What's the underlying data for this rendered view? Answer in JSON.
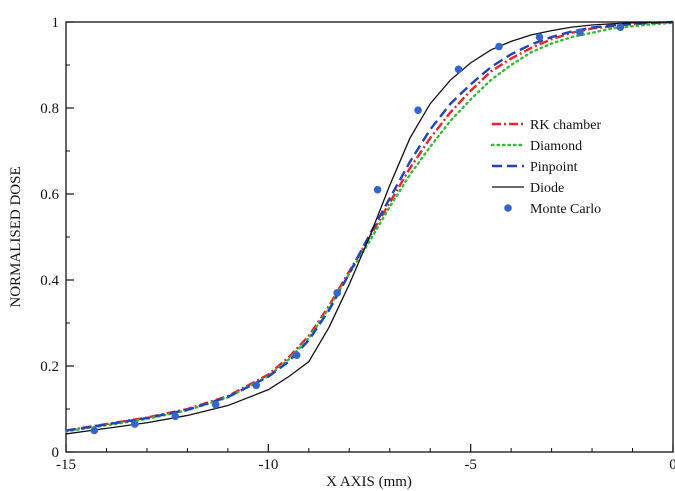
{
  "chart_data": {
    "type": "line",
    "title": "",
    "xlabel": "X AXIS (mm)",
    "ylabel": "NORMALISED DOSE",
    "xlim": [
      -15,
      0
    ],
    "ylim": [
      0,
      1
    ],
    "xticks": [
      -15,
      -10,
      -5,
      0
    ],
    "yticks": [
      0,
      0.2,
      0.4,
      0.6,
      0.8,
      1
    ],
    "xtick_labels": [
      "-15",
      "-10",
      "-5",
      "0"
    ],
    "ytick_labels": [
      "0",
      "0.2",
      "0.4",
      "0.6",
      "0.8",
      "1"
    ],
    "grid": false,
    "legend_position": "right",
    "series": [
      {
        "name": "RK chamber",
        "style": "dash-dot",
        "color": "#e8232a",
        "x": [
          -15,
          -14,
          -13,
          -12,
          -11,
          -10,
          -9.5,
          -9,
          -8.5,
          -8,
          -7.5,
          -7,
          -6.5,
          -6,
          -5.5,
          -5,
          -4.5,
          -4,
          -3.5,
          -3,
          -2.5,
          -2,
          -1.5,
          -1,
          -0.5,
          0
        ],
        "y": [
          0.05,
          0.065,
          0.08,
          0.1,
          0.13,
          0.18,
          0.22,
          0.27,
          0.34,
          0.42,
          0.5,
          0.58,
          0.66,
          0.73,
          0.79,
          0.84,
          0.885,
          0.915,
          0.94,
          0.96,
          0.975,
          0.985,
          0.99,
          0.995,
          0.998,
          1.0
        ]
      },
      {
        "name": "Diamond",
        "style": "dotted",
        "color": "#33bb33",
        "x": [
          -15,
          -14,
          -13,
          -12,
          -11,
          -10,
          -9.5,
          -9,
          -8.5,
          -8,
          -7.5,
          -7,
          -6.5,
          -6,
          -5.5,
          -5,
          -4.5,
          -4,
          -3.5,
          -3,
          -2.5,
          -2,
          -1.5,
          -1,
          -0.5,
          0
        ],
        "y": [
          0.048,
          0.062,
          0.077,
          0.097,
          0.127,
          0.176,
          0.215,
          0.265,
          0.335,
          0.415,
          0.49,
          0.57,
          0.645,
          0.71,
          0.77,
          0.82,
          0.865,
          0.9,
          0.93,
          0.95,
          0.965,
          0.975,
          0.985,
          0.99,
          0.995,
          0.998
        ]
      },
      {
        "name": "Pinpoint",
        "style": "dashed",
        "color": "#2244bb",
        "x": [
          -15,
          -14,
          -13,
          -12,
          -11,
          -10,
          -9.5,
          -9,
          -8.5,
          -8,
          -7.5,
          -7,
          -6.5,
          -6,
          -5.5,
          -5,
          -4.5,
          -4,
          -3.5,
          -3,
          -2.5,
          -2,
          -1.5,
          -1,
          -0.5,
          0
        ],
        "y": [
          0.05,
          0.064,
          0.079,
          0.098,
          0.128,
          0.175,
          0.21,
          0.26,
          0.33,
          0.415,
          0.505,
          0.59,
          0.675,
          0.75,
          0.81,
          0.855,
          0.895,
          0.925,
          0.948,
          0.965,
          0.978,
          0.987,
          0.992,
          0.996,
          0.998,
          1.0
        ]
      },
      {
        "name": "Diode",
        "style": "solid",
        "color": "#111111",
        "x": [
          -15,
          -14,
          -13,
          -12,
          -11,
          -10,
          -9.5,
          -9,
          -8.5,
          -8,
          -7.5,
          -7,
          -6.5,
          -6,
          -5.5,
          -5,
          -4.5,
          -4,
          -3.5,
          -3,
          -2.5,
          -2,
          -1.5,
          -1,
          -0.5,
          0
        ],
        "y": [
          0.042,
          0.055,
          0.068,
          0.085,
          0.108,
          0.145,
          0.175,
          0.21,
          0.29,
          0.39,
          0.5,
          0.62,
          0.73,
          0.81,
          0.865,
          0.905,
          0.935,
          0.955,
          0.97,
          0.98,
          0.988,
          0.993,
          0.996,
          0.998,
          0.999,
          1.0
        ]
      },
      {
        "name": "Monte Carlo",
        "style": "markers",
        "color": "#3366cc",
        "x": [
          -14.3,
          -13.3,
          -12.3,
          -11.3,
          -10.3,
          -9.3,
          -8.3,
          -7.3,
          -6.3,
          -5.3,
          -4.3,
          -3.3,
          -2.3,
          -1.3
        ],
        "y": [
          0.05,
          0.065,
          0.083,
          0.11,
          0.155,
          0.225,
          0.37,
          0.61,
          0.795,
          0.89,
          0.943,
          0.965,
          0.976,
          0.988
        ]
      }
    ]
  }
}
